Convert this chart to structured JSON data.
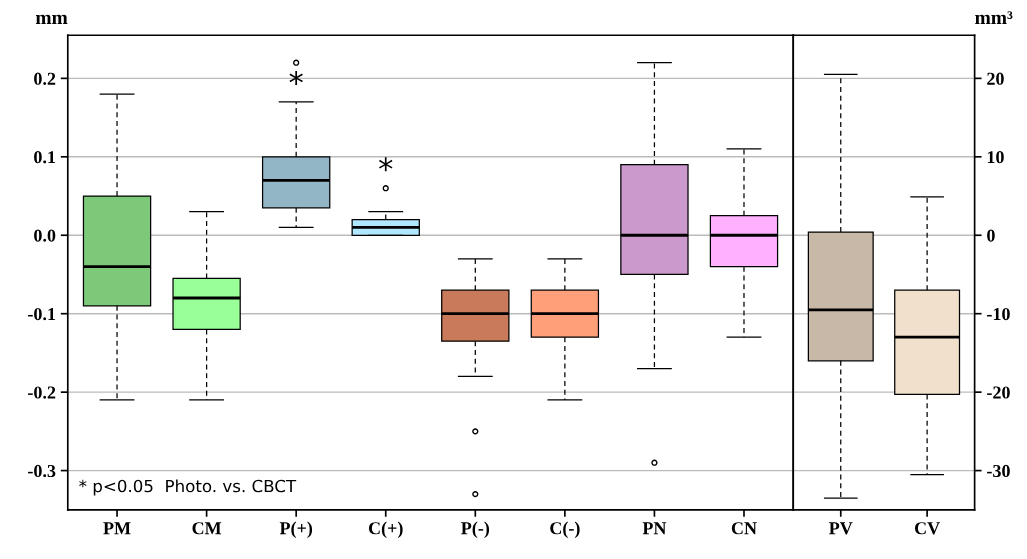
{
  "chart_data": [
    {
      "type": "box",
      "ylabel": "mm",
      "categories": [
        "PM",
        "CM",
        "P(+)",
        "C(+)",
        "P(-)",
        "C(-)",
        "PN",
        "CN"
      ],
      "boxes": [
        {
          "low": -0.21,
          "q1": -0.09,
          "median": -0.04,
          "q3": 0.05,
          "high": 0.18
        },
        {
          "low": -0.21,
          "q1": -0.12,
          "median": -0.08,
          "q3": -0.055,
          "high": 0.03
        },
        {
          "low": 0.01,
          "q1": 0.035,
          "median": 0.07,
          "q3": 0.1,
          "high": 0.17,
          "outliers": [
            0.22
          ]
        },
        {
          "low": 0.0,
          "q1": 0.0,
          "median": 0.01,
          "q3": 0.02,
          "high": 0.03,
          "outliers": [
            0.06
          ]
        },
        {
          "low": -0.18,
          "q1": -0.135,
          "median": -0.1,
          "q3": -0.07,
          "high": -0.03,
          "outliers": [
            -0.25,
            -0.33
          ]
        },
        {
          "low": -0.21,
          "q1": -0.13,
          "median": -0.1,
          "q3": -0.07,
          "high": -0.03
        },
        {
          "low": -0.17,
          "q1": -0.05,
          "median": 0.0,
          "q3": 0.09,
          "high": 0.22,
          "outliers": [
            -0.29
          ]
        },
        {
          "low": -0.13,
          "q1": -0.04,
          "median": 0.0,
          "q3": 0.025,
          "high": 0.11
        }
      ],
      "colors": [
        "#7dc97a",
        "#99ff99",
        "#93b6c6",
        "#b0e8ff",
        "#c87a5a",
        "#ff9f7a",
        "#cc99cc",
        "#ffb0ff"
      ],
      "ylim": [
        -0.35,
        0.255
      ],
      "yticks": [
        {
          "value": -0.3,
          "label": "-0.3"
        },
        {
          "value": -0.2,
          "label": "-0.2"
        },
        {
          "value": -0.1,
          "label": "-0.1"
        },
        {
          "value": 0.0,
          "label": "0.0"
        },
        {
          "value": 0.1,
          "label": "0.1"
        },
        {
          "value": 0.2,
          "label": "0.2"
        }
      ],
      "grid": "y",
      "annotations": [
        {
          "text": "*",
          "x": "P(+)",
          "y": 0.17
        },
        {
          "text": "*",
          "x": "C(+)",
          "y": 0.03
        },
        "* p<0.05  Photo. vs. CBCT"
      ]
    },
    {
      "type": "box",
      "y2label": "mm³",
      "categories": [
        "PV",
        "CV"
      ],
      "series": [
        {
          "axis": "y2",
          "colors": [
            "#c8b8a8",
            "#f0e0cc"
          ],
          "boxes": [
            {
              "low": -33.5,
              "q1": -16,
              "median": -9.5,
              "q3": 0.4,
              "high": 20.5
            },
            {
              "low": -30.5,
              "q1": -20.3,
              "median": -13,
              "q3": -7,
              "high": 4.9
            }
          ]
        }
      ],
      "y2lim": [
        -35,
        25.5
      ],
      "y2ticks": [
        -30,
        -20,
        -10,
        0,
        10,
        20
      ],
      "grid": "y"
    }
  ]
}
